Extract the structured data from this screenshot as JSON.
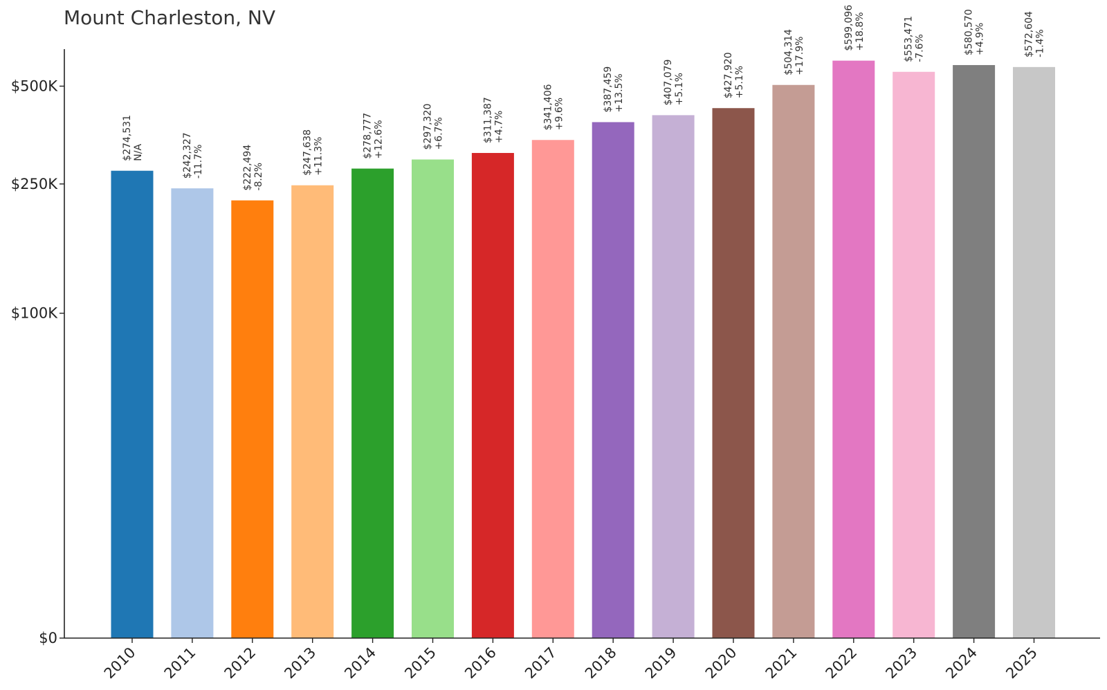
{
  "chart_data": {
    "type": "bar",
    "title": "Mount Charleston, NV",
    "xlabel": "",
    "ylabel": "",
    "y_scale": "symlog",
    "ylim": [
      0,
      650000
    ],
    "grid": false,
    "legend": "none",
    "yticks": [
      {
        "value": 0,
        "label": "$0"
      },
      {
        "value": 100000,
        "label": "$100K"
      },
      {
        "value": 250000,
        "label": "$250K"
      },
      {
        "value": 500000,
        "label": "$500K"
      }
    ],
    "categories": [
      "2010",
      "2011",
      "2012",
      "2013",
      "2014",
      "2015",
      "2016",
      "2017",
      "2018",
      "2019",
      "2020",
      "2021",
      "2022",
      "2023",
      "2024",
      "2025"
    ],
    "values": [
      274531,
      242327,
      222494,
      247638,
      278777,
      297320,
      311387,
      341406,
      387459,
      407079,
      427920,
      504314,
      599096,
      553471,
      580570,
      572604
    ],
    "value_labels": [
      "$274,531",
      "$242,327",
      "$222,494",
      "$247,638",
      "$278,777",
      "$297,320",
      "$311,387",
      "$341,406",
      "$387,459",
      "$407,079",
      "$427,920",
      "$504,314",
      "$599,096",
      "$553,471",
      "$580,570",
      "$572,604"
    ],
    "change_labels": [
      "N/A",
      "-11.7%",
      "-8.2%",
      "+11.3%",
      "+12.6%",
      "+6.7%",
      "+4.7%",
      "+9.6%",
      "+13.5%",
      "+5.1%",
      "+5.1%",
      "+17.9%",
      "+18.8%",
      "-7.6%",
      "+4.9%",
      "-1.4%"
    ],
    "colors": [
      "#1f77b4",
      "#aec7e8",
      "#ff7f0e",
      "#ffbb78",
      "#2ca02c",
      "#98df8a",
      "#d62728",
      "#ff9896",
      "#9467bd",
      "#c5b0d5",
      "#8c564b",
      "#c49c94",
      "#e377c2",
      "#f7b6d2",
      "#7f7f7f",
      "#c7c7c7"
    ]
  }
}
